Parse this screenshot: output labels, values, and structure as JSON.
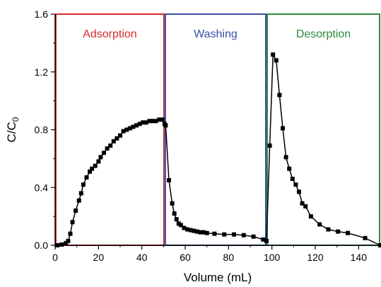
{
  "chart_data": {
    "type": "line",
    "title": "",
    "xlabel": "Volume (mL)",
    "ylabel": {
      "main": "C/C",
      "sub": "0"
    },
    "xlim": [
      0,
      150
    ],
    "ylim": [
      0,
      1.6
    ],
    "xticks": [
      "0",
      "20",
      "40",
      "60",
      "80",
      "100",
      "120",
      "140"
    ],
    "yticks": [
      "0.0",
      "0.4",
      "0.8",
      "1.2",
      "1.6"
    ],
    "grid": false,
    "legend": "none",
    "regions": [
      {
        "label": "Adsorption",
        "x_start": 0,
        "x_end": 50.5,
        "color": "#d62b2b"
      },
      {
        "label": "Washing",
        "x_start": 50.5,
        "x_end": 97.5,
        "color": "#3a4fa8"
      },
      {
        "label": "Desorption",
        "x_start": 97.5,
        "x_end": 150,
        "color": "#2e8b3a"
      }
    ],
    "series": [
      {
        "marker": "square",
        "color": "#000000",
        "points": [
          [
            1,
            0.0
          ],
          [
            3,
            0.005
          ],
          [
            5,
            0.015
          ],
          [
            6,
            0.03
          ],
          [
            7,
            0.08
          ],
          [
            8,
            0.16
          ],
          [
            9.5,
            0.24
          ],
          [
            11,
            0.31
          ],
          [
            12,
            0.36
          ],
          [
            13,
            0.42
          ],
          [
            14.5,
            0.47
          ],
          [
            16,
            0.51
          ],
          [
            17,
            0.53
          ],
          [
            18.5,
            0.55
          ],
          [
            20,
            0.58
          ],
          [
            21,
            0.61
          ],
          [
            22.5,
            0.64
          ],
          [
            24,
            0.67
          ],
          [
            25.5,
            0.69
          ],
          [
            27,
            0.72
          ],
          [
            28.5,
            0.74
          ],
          [
            30,
            0.76
          ],
          [
            31.5,
            0.79
          ],
          [
            33,
            0.8
          ],
          [
            34.5,
            0.81
          ],
          [
            36,
            0.82
          ],
          [
            37.5,
            0.83
          ],
          [
            39,
            0.84
          ],
          [
            40.5,
            0.85
          ],
          [
            42,
            0.85
          ],
          [
            43.5,
            0.86
          ],
          [
            45,
            0.86
          ],
          [
            46.5,
            0.86
          ],
          [
            48,
            0.87
          ],
          [
            49.5,
            0.87
          ],
          [
            50.5,
            0.84
          ],
          [
            51,
            0.83
          ],
          [
            52.5,
            0.45
          ],
          [
            54,
            0.29
          ],
          [
            55,
            0.22
          ],
          [
            56,
            0.18
          ],
          [
            57,
            0.15
          ],
          [
            58,
            0.14
          ],
          [
            59.5,
            0.12
          ],
          [
            61,
            0.11
          ],
          [
            62.5,
            0.105
          ],
          [
            64,
            0.1
          ],
          [
            65.5,
            0.095
          ],
          [
            67,
            0.09
          ],
          [
            68.5,
            0.09
          ],
          [
            70,
            0.085
          ],
          [
            73.5,
            0.08
          ],
          [
            78,
            0.075
          ],
          [
            82.5,
            0.075
          ],
          [
            87,
            0.07
          ],
          [
            91.5,
            0.06
          ],
          [
            96,
            0.04
          ],
          [
            97.5,
            0.03
          ],
          [
            99,
            0.69
          ],
          [
            100.5,
            1.32
          ],
          [
            102,
            1.28
          ],
          [
            103.5,
            1.04
          ],
          [
            105,
            0.81
          ],
          [
            106.5,
            0.61
          ],
          [
            108,
            0.53
          ],
          [
            109.5,
            0.46
          ],
          [
            111,
            0.42
          ],
          [
            112.5,
            0.37
          ],
          [
            114,
            0.29
          ],
          [
            115.5,
            0.27
          ],
          [
            118,
            0.2
          ],
          [
            122,
            0.145
          ],
          [
            126,
            0.11
          ],
          [
            130.5,
            0.095
          ],
          [
            135,
            0.085
          ],
          [
            143,
            0.05
          ],
          [
            150,
            0.0
          ]
        ]
      }
    ]
  }
}
